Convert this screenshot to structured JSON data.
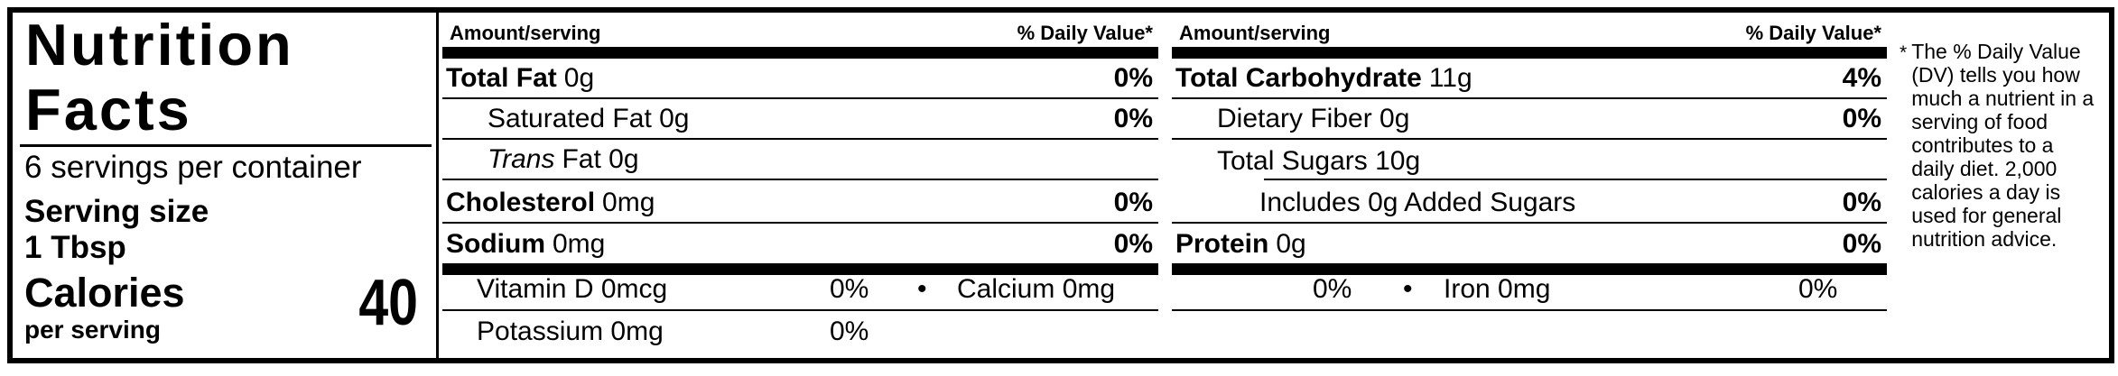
{
  "label": {
    "title_line1": "Nutrition",
    "title_line2": "Facts",
    "servings_per_container": "6 servings per container",
    "serving_size_label": "Serving size",
    "serving_size_value": "1 Tbsp",
    "calories_label": "Calories",
    "calories_sublabel": "per serving",
    "calories_value": "40"
  },
  "headers": {
    "amount": "Amount/serving",
    "daily_value": "% Daily Value*"
  },
  "col1": {
    "total_fat_label": "Total Fat",
    "total_fat_amount": "0g",
    "total_fat_dv": "0%",
    "saturated_fat": "Saturated Fat 0g",
    "saturated_fat_dv": "0%",
    "trans_italic": "Trans",
    "trans_rest": "Fat 0g",
    "cholesterol_label": "Cholesterol",
    "cholesterol_amount": "0mg",
    "cholesterol_dv": "0%",
    "sodium_label": "Sodium",
    "sodium_amount": "0mg",
    "sodium_dv": "0%"
  },
  "col2": {
    "carb_label": "Total Carbohydrate",
    "carb_amount": "11g",
    "carb_dv": "4%",
    "fiber": "Dietary Fiber 0g",
    "fiber_dv": "0%",
    "sugars": "Total Sugars 10g",
    "added_sugars": "Includes 0g Added Sugars",
    "added_sugars_dv": "0%",
    "protein_label": "Protein",
    "protein_amount": "0g",
    "protein_dv": "0%"
  },
  "micros": {
    "bullet": "•",
    "vitamin_d": "Vitamin D 0mcg",
    "vitamin_d_dv": "0%",
    "calcium": "Calcium 0mg",
    "calcium_dv": "0%",
    "iron": "Iron 0mg",
    "iron_dv": "0%",
    "potassium": "Potassium 0mg",
    "potassium_dv": "0%"
  },
  "footnote": {
    "marker": "*",
    "text": "The % Daily Value (DV) tells you how much a nutrient in a serving of food contributes to a daily diet. 2,000 calories a day is used for general nutrition advice."
  }
}
